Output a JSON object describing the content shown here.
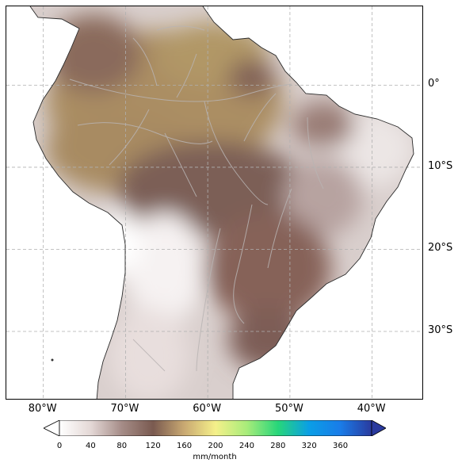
{
  "map": {
    "lat_ticks": [
      {
        "label": "0°",
        "value": 0
      },
      {
        "label": "10°S",
        "value": -10
      },
      {
        "label": "20°S",
        "value": -20
      },
      {
        "label": "30°S",
        "value": -30
      }
    ],
    "lon_ticks": [
      {
        "label": "80°W",
        "value": -80
      },
      {
        "label": "70°W",
        "value": -70
      },
      {
        "label": "60°W",
        "value": -60
      },
      {
        "label": "50°W",
        "value": -50
      },
      {
        "label": "40°W",
        "value": -40
      }
    ],
    "extent": {
      "lon_min": -84.5,
      "lon_max": -33.7,
      "lat_min": -38.4,
      "lat_max": 9.6
    },
    "gridlines": true,
    "land_fill_colors": {
      "north_amazon": "#a98d64",
      "central_west": "#7e6059",
      "northeast": "#a0847e",
      "south": "#86625d",
      "dry_light": "#e9e3e2",
      "white": "#ffffff"
    }
  },
  "colorbar": {
    "unit": "mm/month",
    "ticks": [
      "0",
      "40",
      "80",
      "120",
      "160",
      "200",
      "240",
      "280",
      "320",
      "360"
    ],
    "tick_values": [
      0,
      40,
      80,
      120,
      160,
      200,
      240,
      280,
      320,
      360
    ],
    "max": 400,
    "extend": "both",
    "colors": [
      "#ffffff",
      "#e4d8d6",
      "#a58c87",
      "#7a5a50",
      "#c9a972",
      "#f5f08a",
      "#a8ec7a",
      "#27d67a",
      "#0a9ee6",
      "#1a7ce8",
      "#2a3a9e"
    ]
  }
}
